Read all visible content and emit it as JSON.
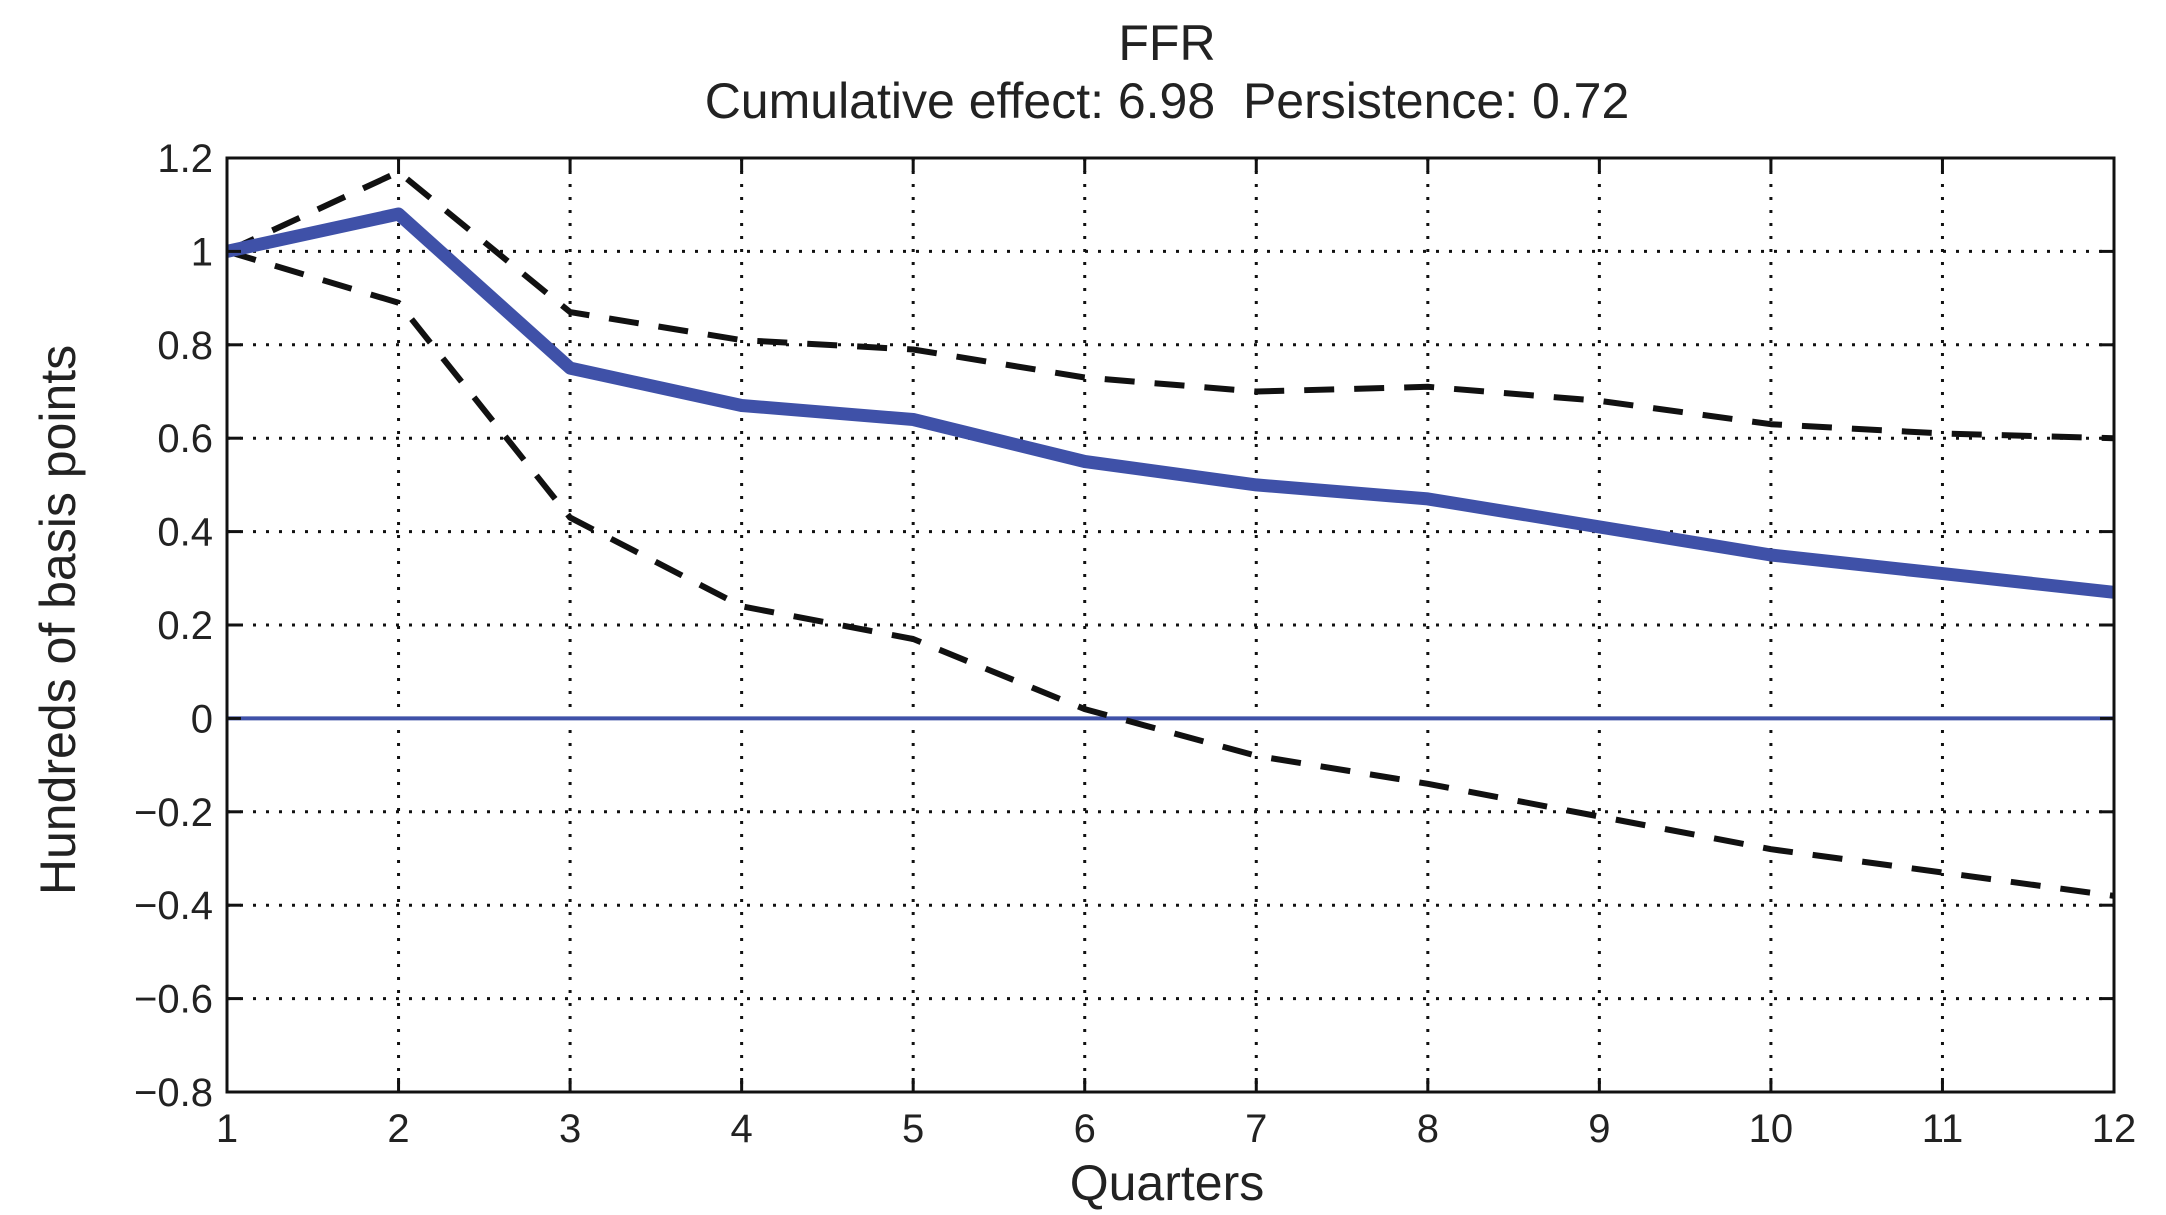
{
  "chart_data": {
    "type": "line",
    "title": "FFR",
    "subtitle": "Cumulative effect: 6.98  Persistence: 0.72",
    "xlabel": "Quarters",
    "ylabel": "Hundreds of basis points",
    "xlim": [
      1,
      12
    ],
    "ylim": [
      -0.8,
      1.2
    ],
    "xticks": [
      "1",
      "2",
      "3",
      "4",
      "5",
      "6",
      "7",
      "8",
      "9",
      "10",
      "11",
      "12"
    ],
    "yticks": [
      "1.2",
      "1",
      "0.8",
      "0.6",
      "0.4",
      "0.2",
      "0",
      "−0.2",
      "−0.4",
      "−0.6",
      "−0.8"
    ],
    "ytick_values": [
      1.2,
      1,
      0.8,
      0.6,
      0.4,
      0.2,
      0,
      -0.2,
      -0.4,
      -0.6,
      -0.8
    ],
    "grid": true,
    "zero_line": true,
    "x": [
      1,
      2,
      3,
      4,
      5,
      6,
      7,
      8,
      9,
      10,
      11,
      12
    ],
    "series": [
      {
        "role": "estimate",
        "style": "solid",
        "color": "#3f51a8",
        "values": [
          1.0,
          1.08,
          0.75,
          0.67,
          0.64,
          0.55,
          0.5,
          0.47,
          0.41,
          0.35,
          0.31,
          0.27
        ]
      },
      {
        "role": "upper-band",
        "style": "dashed",
        "color": "#111111",
        "values": [
          1.0,
          1.17,
          0.87,
          0.81,
          0.79,
          0.73,
          0.7,
          0.71,
          0.68,
          0.63,
          0.61,
          0.6
        ]
      },
      {
        "role": "lower-band",
        "style": "dashed",
        "color": "#111111",
        "values": [
          1.0,
          0.89,
          0.43,
          0.24,
          0.17,
          0.02,
          -0.08,
          -0.14,
          -0.21,
          -0.28,
          -0.33,
          -0.38
        ]
      }
    ]
  }
}
